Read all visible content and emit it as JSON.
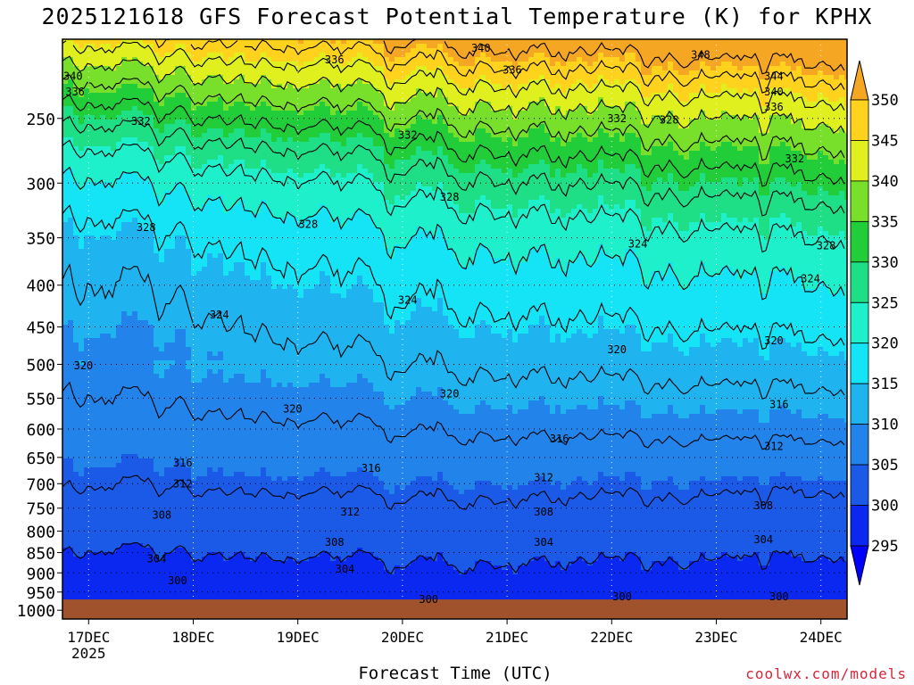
{
  "title": "2025121618 GFS Forecast Potential Temperature (K) for KPHX",
  "xlabel": "Forecast Time (UTC)",
  "credit": "coolwx.com/models",
  "chart_data": {
    "type": "heatmap",
    "title": "2025121618 GFS Forecast Potential Temperature (K) for KPHX",
    "xlabel": "Forecast Time (UTC)",
    "ylabel": "",
    "x_ticks": [
      {
        "label": "17DEC",
        "sub": "2025",
        "day": 0.25
      },
      {
        "label": "18DEC",
        "sub": "",
        "day": 1.25
      },
      {
        "label": "19DEC",
        "sub": "",
        "day": 2.25
      },
      {
        "label": "20DEC",
        "sub": "",
        "day": 3.25
      },
      {
        "label": "21DEC",
        "sub": "",
        "day": 4.25
      },
      {
        "label": "22DEC",
        "sub": "",
        "day": 5.25
      },
      {
        "label": "23DEC",
        "sub": "",
        "day": 6.25
      },
      {
        "label": "24DEC",
        "sub": "",
        "day": 7.25
      }
    ],
    "xlim": [
      0,
      7.5
    ],
    "y_ticks": [
      250,
      300,
      350,
      400,
      450,
      500,
      550,
      600,
      650,
      700,
      750,
      800,
      850,
      900,
      950,
      1000
    ],
    "ylim": [
      1025,
      200
    ],
    "y_scale": "log",
    "surface_pressure": 970,
    "colorbar": {
      "levels": [
        295,
        300,
        305,
        310,
        315,
        320,
        325,
        330,
        335,
        340,
        345,
        350
      ],
      "colors": [
        "#0000ff",
        "#0a28f0",
        "#1a5ae6",
        "#2283ea",
        "#1fb4f0",
        "#14e4f5",
        "#1ef0cc",
        "#1fdf86",
        "#22cd3a",
        "#78e02a",
        "#e0f01e",
        "#ffd21e",
        "#f5a623"
      ]
    },
    "contour_interval": 4,
    "contour_labels": [
      {
        "value": "340",
        "day": 0.1,
        "p": 222
      },
      {
        "value": "336",
        "day": 0.12,
        "p": 232
      },
      {
        "value": "332",
        "day": 0.75,
        "p": 252
      },
      {
        "value": "328",
        "day": 0.8,
        "p": 340
      },
      {
        "value": "336",
        "day": 2.6,
        "p": 212
      },
      {
        "value": "340",
        "day": 4.0,
        "p": 205
      },
      {
        "value": "336",
        "day": 4.3,
        "p": 218
      },
      {
        "value": "332",
        "day": 3.3,
        "p": 262
      },
      {
        "value": "332",
        "day": 5.3,
        "p": 250
      },
      {
        "value": "328",
        "day": 5.8,
        "p": 251
      },
      {
        "value": "348",
        "day": 6.1,
        "p": 209
      },
      {
        "value": "344",
        "day": 6.8,
        "p": 222
      },
      {
        "value": "340",
        "day": 6.8,
        "p": 232
      },
      {
        "value": "336",
        "day": 6.8,
        "p": 242
      },
      {
        "value": "332",
        "day": 7.0,
        "p": 280
      },
      {
        "value": "328",
        "day": 2.35,
        "p": 337
      },
      {
        "value": "328",
        "day": 3.7,
        "p": 312
      },
      {
        "value": "328",
        "day": 7.3,
        "p": 358
      },
      {
        "value": "324",
        "day": 1.5,
        "p": 435
      },
      {
        "value": "324",
        "day": 3.3,
        "p": 417
      },
      {
        "value": "324",
        "day": 5.5,
        "p": 356
      },
      {
        "value": "324",
        "day": 7.15,
        "p": 393
      },
      {
        "value": "320",
        "day": 0.2,
        "p": 502
      },
      {
        "value": "320",
        "day": 2.2,
        "p": 567
      },
      {
        "value": "320",
        "day": 3.7,
        "p": 543
      },
      {
        "value": "320",
        "day": 5.3,
        "p": 480
      },
      {
        "value": "320",
        "day": 6.8,
        "p": 468
      },
      {
        "value": "316",
        "day": 1.15,
        "p": 660
      },
      {
        "value": "316",
        "day": 2.95,
        "p": 670
      },
      {
        "value": "316",
        "day": 4.75,
        "p": 617
      },
      {
        "value": "316",
        "day": 6.85,
        "p": 560
      },
      {
        "value": "312",
        "day": 1.15,
        "p": 700
      },
      {
        "value": "312",
        "day": 2.75,
        "p": 758
      },
      {
        "value": "312",
        "day": 4.6,
        "p": 688
      },
      {
        "value": "312",
        "day": 6.8,
        "p": 630
      },
      {
        "value": "308",
        "day": 0.95,
        "p": 765
      },
      {
        "value": "308",
        "day": 2.6,
        "p": 826
      },
      {
        "value": "308",
        "day": 4.6,
        "p": 758
      },
      {
        "value": "308",
        "day": 6.7,
        "p": 745
      },
      {
        "value": "304",
        "day": 0.9,
        "p": 865
      },
      {
        "value": "304",
        "day": 2.7,
        "p": 890
      },
      {
        "value": "304",
        "day": 4.6,
        "p": 826
      },
      {
        "value": "304",
        "day": 6.7,
        "p": 820
      },
      {
        "value": "300",
        "day": 1.1,
        "p": 920
      },
      {
        "value": "300",
        "day": 3.5,
        "p": 970
      },
      {
        "value": "300",
        "day": 5.35,
        "p": 962
      },
      {
        "value": "300",
        "day": 6.85,
        "p": 962
      }
    ]
  }
}
